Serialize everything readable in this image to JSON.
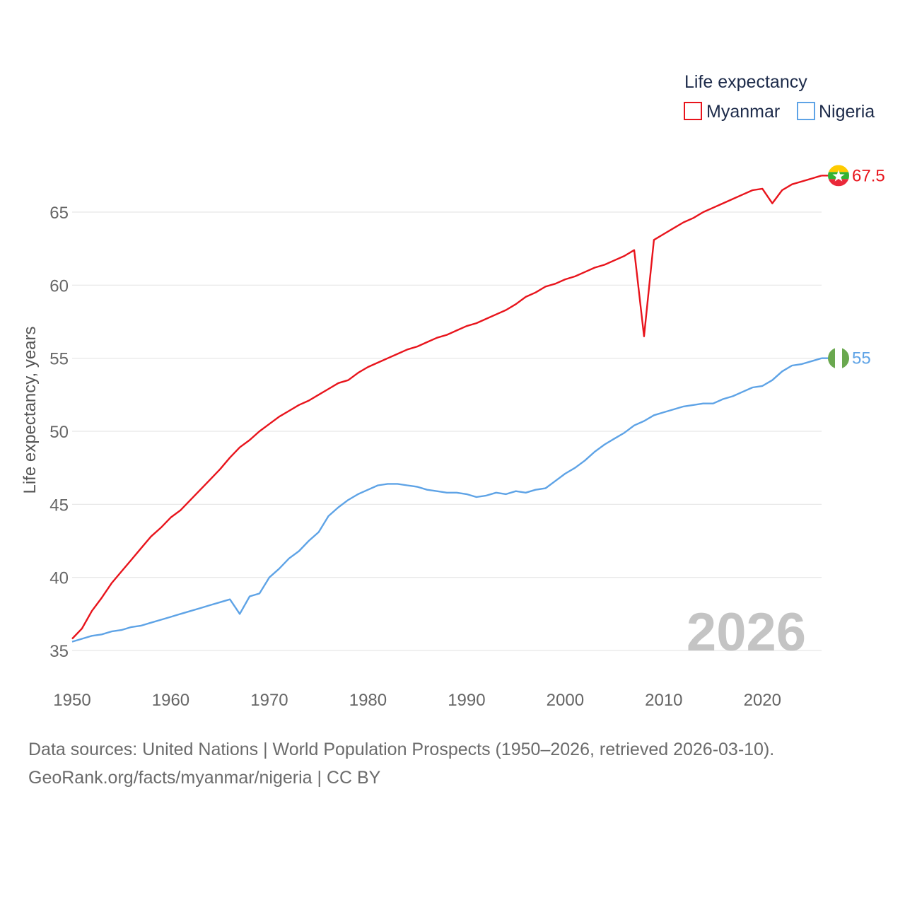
{
  "chart_data": {
    "type": "line",
    "title": "",
    "legend": {
      "title": "Life expectancy",
      "placement": "top-right",
      "items": [
        {
          "name": "Myanmar",
          "color": "#e8141c"
        },
        {
          "name": "Nigeria",
          "color": "#5ea3e6"
        }
      ]
    },
    "ylabel": "Life expectancy, years",
    "xlabel": "",
    "xlim": [
      1950,
      2026
    ],
    "ylim": [
      33.5,
      68
    ],
    "x_ticks": [
      1950,
      1960,
      1970,
      1980,
      1990,
      2000,
      2010,
      2020
    ],
    "y_ticks": [
      35,
      40,
      45,
      50,
      55,
      60,
      65
    ],
    "grid": true,
    "year_watermark": "2026",
    "series": [
      {
        "name": "Myanmar",
        "color": "#e8141c",
        "end_label": "67.5",
        "flag": "myanmar-flag",
        "x": [
          1950,
          1951,
          1952,
          1953,
          1954,
          1955,
          1956,
          1957,
          1958,
          1959,
          1960,
          1961,
          1962,
          1963,
          1964,
          1965,
          1966,
          1967,
          1968,
          1969,
          1970,
          1971,
          1972,
          1973,
          1974,
          1975,
          1976,
          1977,
          1978,
          1979,
          1980,
          1981,
          1982,
          1983,
          1984,
          1985,
          1986,
          1987,
          1988,
          1989,
          1990,
          1991,
          1992,
          1993,
          1994,
          1995,
          1996,
          1997,
          1998,
          1999,
          2000,
          2001,
          2002,
          2003,
          2004,
          2005,
          2006,
          2007,
          2008,
          2009,
          2010,
          2011,
          2012,
          2013,
          2014,
          2015,
          2016,
          2017,
          2018,
          2019,
          2020,
          2021,
          2022,
          2023,
          2024,
          2025,
          2026
        ],
        "y": [
          35.8,
          36.5,
          37.7,
          38.6,
          39.6,
          40.4,
          41.2,
          42.0,
          42.8,
          43.4,
          44.1,
          44.6,
          45.3,
          46.0,
          46.7,
          47.4,
          48.2,
          48.9,
          49.4,
          50.0,
          50.5,
          51.0,
          51.4,
          51.8,
          52.1,
          52.5,
          52.9,
          53.3,
          53.5,
          54.0,
          54.4,
          54.7,
          55.0,
          55.3,
          55.6,
          55.8,
          56.1,
          56.4,
          56.6,
          56.9,
          57.2,
          57.4,
          57.7,
          58.0,
          58.3,
          58.7,
          59.2,
          59.5,
          59.9,
          60.1,
          60.4,
          60.6,
          60.9,
          61.2,
          61.4,
          61.7,
          62.0,
          62.4,
          56.5,
          63.1,
          63.5,
          63.9,
          64.3,
          64.6,
          65.0,
          65.3,
          65.6,
          65.9,
          66.2,
          66.5,
          66.6,
          65.6,
          66.5,
          66.9,
          67.1,
          67.3,
          67.5
        ]
      },
      {
        "name": "Nigeria",
        "color": "#5ea3e6",
        "end_label": "55",
        "flag": "nigeria-flag",
        "x": [
          1950,
          1951,
          1952,
          1953,
          1954,
          1955,
          1956,
          1957,
          1958,
          1959,
          1960,
          1961,
          1962,
          1963,
          1964,
          1965,
          1966,
          1967,
          1968,
          1969,
          1970,
          1971,
          1972,
          1973,
          1974,
          1975,
          1976,
          1977,
          1978,
          1979,
          1980,
          1981,
          1982,
          1983,
          1984,
          1985,
          1986,
          1987,
          1988,
          1989,
          1990,
          1991,
          1992,
          1993,
          1994,
          1995,
          1996,
          1997,
          1998,
          1999,
          2000,
          2001,
          2002,
          2003,
          2004,
          2005,
          2006,
          2007,
          2008,
          2009,
          2010,
          2011,
          2012,
          2013,
          2014,
          2015,
          2016,
          2017,
          2018,
          2019,
          2020,
          2021,
          2022,
          2023,
          2024,
          2025,
          2026
        ],
        "y": [
          35.6,
          35.8,
          36.0,
          36.1,
          36.3,
          36.4,
          36.6,
          36.7,
          36.9,
          37.1,
          37.3,
          37.5,
          37.7,
          37.9,
          38.1,
          38.3,
          38.5,
          37.5,
          38.7,
          38.9,
          40.0,
          40.6,
          41.3,
          41.8,
          42.5,
          43.1,
          44.2,
          44.8,
          45.3,
          45.7,
          46.0,
          46.3,
          46.4,
          46.4,
          46.3,
          46.2,
          46.0,
          45.9,
          45.8,
          45.8,
          45.7,
          45.5,
          45.6,
          45.8,
          45.7,
          45.9,
          45.8,
          46.0,
          46.1,
          46.6,
          47.1,
          47.5,
          48.0,
          48.6,
          49.1,
          49.5,
          49.9,
          50.4,
          50.7,
          51.1,
          51.3,
          51.5,
          51.7,
          51.8,
          51.9,
          51.9,
          52.2,
          52.4,
          52.7,
          53.0,
          53.1,
          53.5,
          54.1,
          54.5,
          54.6,
          54.8,
          55.0
        ]
      }
    ]
  },
  "footer": {
    "line1": "Data sources: United Nations | World Population Prospects (1950–2026, retrieved 2026-03-10).",
    "line2": "GeoRank.org/facts/myanmar/nigeria | CC BY"
  }
}
